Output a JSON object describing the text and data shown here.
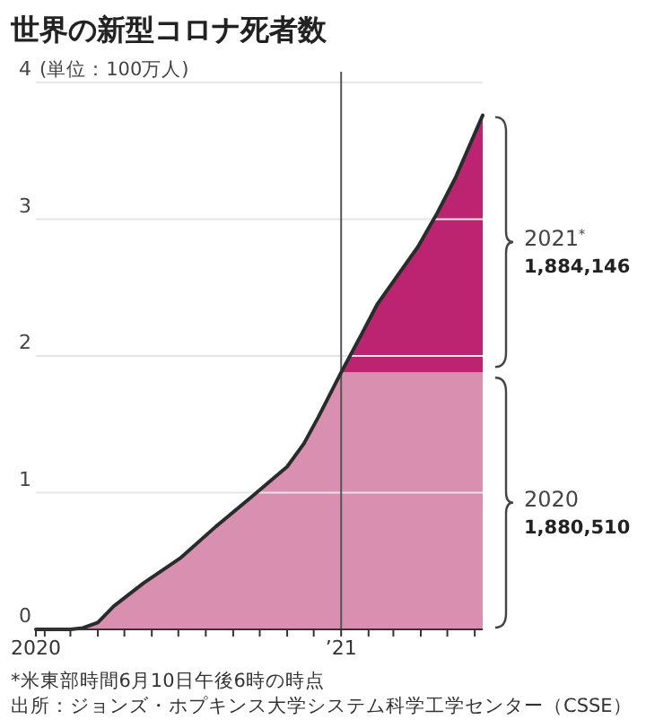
{
  "chart_data": {
    "type": "area",
    "title": "世界の新型コロナ死者数",
    "ylabel": "(単位：100万人)",
    "stacked": true,
    "grid": "y",
    "tick_labels": "xy",
    "x": [
      "2020-01-22",
      "2020-03-01",
      "2020-03-15",
      "2020-04-01",
      "2020-04-19",
      "2020-05-23",
      "2020-07-03",
      "2020-08-12",
      "2020-09-22",
      "2020-11-01",
      "2020-11-20",
      "2020-12-06",
      "2021-01-01",
      "2021-01-25",
      "2021-02-11",
      "2021-03-29",
      "2021-04-20",
      "2021-05-10",
      "2021-06-10"
    ],
    "series": [
      {
        "name": "2020",
        "color": "#d98fb0",
        "values": [
          0,
          0,
          0.01,
          0.05,
          0.17,
          0.34,
          0.52,
          0.75,
          0.97,
          1.19,
          1.36,
          1.55,
          1.88,
          1.88,
          1.88,
          1.88,
          1.88,
          1.88,
          1.88
        ]
      },
      {
        "name": "2021$^{*}$",
        "color": "#bc2472",
        "values": [
          null,
          null,
          null,
          null,
          null,
          null,
          null,
          null,
          null,
          null,
          null,
          null,
          0,
          0.29,
          0.5,
          0.92,
          1.17,
          1.42,
          1.88
        ]
      },
      {
        "type": "line",
        "color": "#2b2b2b",
        "values": [
          0,
          0,
          0.01,
          0.05,
          0.17,
          0.34,
          0.52,
          0.75,
          0.97,
          1.19,
          1.36,
          1.55,
          1.88,
          2.17,
          2.38,
          2.8,
          3.05,
          3.3,
          3.76
        ]
      }
    ],
    "xlim": [
      "2020-01-22",
      "2021-06-10"
    ],
    "xticks": [
      {
        "value": "2020-01-22",
        "label": "2020"
      },
      {
        "value": "2020-02-01",
        "label": null
      },
      {
        "value": "2020-03-01",
        "label": null
      },
      {
        "value": "2020-04-01",
        "label": null
      },
      {
        "value": "2020-05-01",
        "label": null
      },
      {
        "value": "2020-06-01",
        "label": null
      },
      {
        "value": "2020-07-01",
        "label": null
      },
      {
        "value": "2020-08-01",
        "label": null
      },
      {
        "value": "2020-09-01",
        "label": null
      },
      {
        "value": "2020-10-01",
        "label": null
      },
      {
        "value": "2020-11-01",
        "label": null
      },
      {
        "value": "2020-12-01",
        "label": null
      },
      {
        "value": "2021-01-01",
        "label": "’21"
      },
      {
        "value": "2021-02-01",
        "label": null
      },
      {
        "value": "2021-03-01",
        "label": null
      },
      {
        "value": "2021-04-01",
        "label": null
      },
      {
        "value": "2021-05-01",
        "label": null
      },
      {
        "value": "2021-06-01",
        "label": null
      }
    ],
    "ylim": [
      0,
      4
    ],
    "yticks": [
      0,
      1,
      2,
      3,
      4
    ],
    "ref_lines": [
      {
        "axis": "x",
        "value": "2021-01-01",
        "color": "#555555"
      }
    ],
    "annotations": [
      "1,880,510",
      "1,884,146",
      "*米東部時間6月10日午後6時の時点",
      "出所：ジョンズ・ホプキンス大学システム科学工学センター（CSSE）"
    ]
  }
}
